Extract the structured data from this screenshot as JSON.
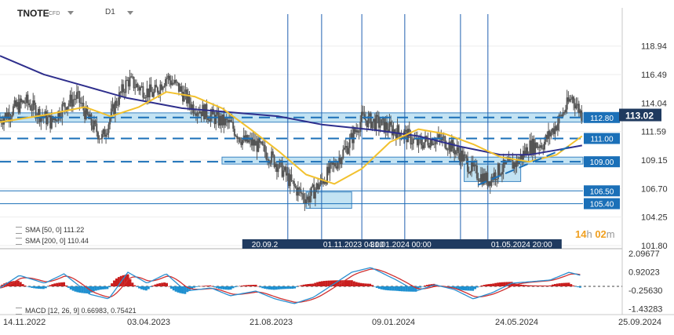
{
  "header": {
    "symbol": "TNOTE",
    "instrument_type": "CFD",
    "timeframe": "D1"
  },
  "timer": {
    "hours": "14",
    "hours_unit": "h",
    "minutes": "02",
    "minutes_unit": "m"
  },
  "indicators": {
    "sma50_label": "SMA [50, 0] 111.22",
    "sma200_label": "SMA [200, 0] 110.44",
    "macd_label": "MACD [12, 26, 9] 0.66983, 0.75421"
  },
  "colors": {
    "candles": "#555555",
    "sma50": "#f2c12e",
    "sma200": "#2e2e8c",
    "levels": "#1b70b8",
    "zone_fill": "#b9dff2",
    "vlines": "#2060b0",
    "last_price_bg": "#1f3a5f",
    "level_label_bg": "#1b70b8",
    "macd_line": "#2a8fd0",
    "signal_line": "#d03030",
    "hist_pos": "#c81e1e",
    "hist_neg": "#1e90d0",
    "timer": "#f0a020"
  },
  "chart_data": [
    {
      "type": "candlestick",
      "timeframe": "D1",
      "y_axis_ticks": [
        118.94,
        116.49,
        114.04,
        111.59,
        109.15,
        106.7,
        104.25,
        101.8
      ],
      "ylim": [
        101.8,
        120.2
      ],
      "x_axis_ticks": [
        "14.11.2022",
        "03.04.2023",
        "21.08.2023",
        "09.01.2024",
        "24.05.2024",
        "25.09.2024"
      ],
      "xlim": [
        "2022-11-14",
        "2024-09-25"
      ],
      "last_price": 113.02,
      "close_path": [
        [
          "2022-11-14",
          112.6
        ],
        [
          "2022-11-28",
          113.5
        ],
        [
          "2022-12-12",
          114.2
        ],
        [
          "2022-12-26",
          113.2
        ],
        [
          "2023-01-09",
          112.4
        ],
        [
          "2023-01-23",
          113.8
        ],
        [
          "2023-02-06",
          114.6
        ],
        [
          "2023-02-20",
          112.5
        ],
        [
          "2023-03-06",
          111.0
        ],
        [
          "2023-03-20",
          113.9
        ],
        [
          "2023-04-03",
          116.0
        ],
        [
          "2023-04-17",
          115.3
        ],
        [
          "2023-05-01",
          114.8
        ],
        [
          "2023-05-15",
          116.3
        ],
        [
          "2023-05-29",
          115.3
        ],
        [
          "2023-06-12",
          113.8
        ],
        [
          "2023-06-26",
          113.3
        ],
        [
          "2023-07-10",
          112.6
        ],
        [
          "2023-07-24",
          112.2
        ],
        [
          "2023-08-07",
          110.8
        ],
        [
          "2023-08-21",
          110.5
        ],
        [
          "2023-09-04",
          109.6
        ],
        [
          "2023-09-18",
          108.4
        ],
        [
          "2023-10-02",
          106.8
        ],
        [
          "2023-10-16",
          105.8
        ],
        [
          "2023-11-01",
          107.3
        ],
        [
          "2023-11-15",
          108.7
        ],
        [
          "2023-12-01",
          110.6
        ],
        [
          "2023-12-15",
          112.7
        ],
        [
          "2024-01-02",
          112.3
        ],
        [
          "2024-01-16",
          111.8
        ],
        [
          "2024-02-01",
          111.3
        ],
        [
          "2024-02-15",
          110.5
        ],
        [
          "2024-03-01",
          111.0
        ],
        [
          "2024-03-15",
          110.8
        ],
        [
          "2024-04-01",
          109.6
        ],
        [
          "2024-04-15",
          108.2
        ],
        [
          "2024-05-01",
          107.4
        ],
        [
          "2024-05-15",
          108.4
        ],
        [
          "2024-06-01",
          108.9
        ],
        [
          "2024-06-15",
          110.3
        ],
        [
          "2024-07-01",
          110.6
        ],
        [
          "2024-07-15",
          112.2
        ],
        [
          "2024-08-01",
          114.6
        ],
        [
          "2024-08-12",
          113.0
        ]
      ],
      "series": [
        {
          "name": "SMA [50, 0]",
          "value": 111.22,
          "values": [
            [
              "2022-11-14",
              112.4
            ],
            [
              "2023-01-01",
              113.0
            ],
            [
              "2023-02-15",
              113.7
            ],
            [
              "2023-03-15",
              112.9
            ],
            [
              "2023-04-15",
              113.7
            ],
            [
              "2023-05-15",
              115.0
            ],
            [
              "2023-06-15",
              114.6
            ],
            [
              "2023-07-15",
              113.6
            ],
            [
              "2023-08-15",
              111.8
            ],
            [
              "2023-09-15",
              109.9
            ],
            [
              "2023-10-15",
              107.9
            ],
            [
              "2023-11-15",
              107.1
            ],
            [
              "2023-12-15",
              108.4
            ],
            [
              "2024-01-15",
              110.7
            ],
            [
              "2024-02-15",
              111.8
            ],
            [
              "2024-03-15",
              111.4
            ],
            [
              "2024-04-15",
              110.5
            ],
            [
              "2024-05-15",
              109.4
            ],
            [
              "2024-06-15",
              109.0
            ],
            [
              "2024-07-15",
              109.6
            ],
            [
              "2024-08-12",
              111.2
            ]
          ]
        },
        {
          "name": "SMA [200, 0]",
          "value": 110.44,
          "values": [
            [
              "2022-11-14",
              118.1
            ],
            [
              "2023-01-01",
              116.5
            ],
            [
              "2023-02-15",
              115.5
            ],
            [
              "2023-04-01",
              114.5
            ],
            [
              "2023-06-01",
              113.6
            ],
            [
              "2023-08-01",
              113.2
            ],
            [
              "2023-09-15",
              112.9
            ],
            [
              "2023-11-01",
              112.2
            ],
            [
              "2024-01-01",
              111.7
            ],
            [
              "2024-02-15",
              111.2
            ],
            [
              "2024-04-01",
              110.3
            ],
            [
              "2024-05-15",
              109.6
            ],
            [
              "2024-06-15",
              109.6
            ],
            [
              "2024-07-15",
              110.0
            ],
            [
              "2024-08-12",
              110.4
            ]
          ]
        }
      ],
      "horizontal_levels": [
        {
          "value": 112.8,
          "label": "112.80",
          "style": "dashed"
        },
        {
          "value": 111.0,
          "label": "111.00",
          "style": "dashed"
        },
        {
          "value": 109.0,
          "label": "109.00",
          "style": "dashed"
        },
        {
          "value": 106.5,
          "label": "106.50",
          "style": "solid"
        },
        {
          "value": 105.4,
          "label": "105.40",
          "style": "solid"
        }
      ],
      "zones": [
        {
          "from": "2022-11-14",
          "to": "2024-08-12",
          "low": 112.4,
          "high": 113.2
        },
        {
          "from": "2023-07-15",
          "to": "2024-08-12",
          "low": 108.8,
          "high": 109.4
        },
        {
          "from": "2023-10-15",
          "to": "2023-11-03",
          "low": 105.0,
          "high": 106.4
        },
        {
          "from": "2024-04-05",
          "to": "2024-05-06",
          "low": 107.3,
          "high": 108.8
        }
      ],
      "trendline": {
        "from": [
          "2024-04-20",
          107.0
        ],
        "to": [
          "2024-08-01",
          110.4
        ],
        "style": "dashed"
      },
      "vertical_markers": [
        "2023-09-25",
        "2023-11-01",
        "2023-12-15",
        "2024-01-31",
        "2024-04-01",
        "2024-05-01"
      ],
      "marker_labels": [
        "20.09.2",
        "01.11.2023 04:00",
        "31.01.2024 00:00",
        "01.05.2024 20:00"
      ]
    },
    {
      "type": "line",
      "name": "MACD [12, 26, 9]",
      "y_axis_ticks": [
        2.09677,
        0.92023,
        -0.2563,
        -1.43283
      ],
      "ylim": [
        -1.8,
        2.2
      ],
      "macd_value": 0.66983,
      "signal_value": 0.75421,
      "macd": [
        [
          "2022-11-14",
          -0.1
        ],
        [
          "2022-12-05",
          0.7
        ],
        [
          "2023-01-02",
          0.2
        ],
        [
          "2023-01-23",
          0.8
        ],
        [
          "2023-02-20",
          -0.5
        ],
        [
          "2023-03-13",
          -0.8
        ],
        [
          "2023-04-03",
          0.9
        ],
        [
          "2023-04-24",
          0.2
        ],
        [
          "2023-05-15",
          0.8
        ],
        [
          "2023-06-05",
          -0.3
        ],
        [
          "2023-07-03",
          -0.1
        ],
        [
          "2023-07-24",
          -0.6
        ],
        [
          "2023-08-21",
          -0.3
        ],
        [
          "2023-09-11",
          -0.8
        ],
        [
          "2023-10-02",
          -1.1
        ],
        [
          "2023-10-23",
          -0.7
        ],
        [
          "2023-11-13",
          0.1
        ],
        [
          "2023-12-04",
          0.9
        ],
        [
          "2023-12-25",
          1.2
        ],
        [
          "2024-01-22",
          0.4
        ],
        [
          "2024-02-12",
          -0.3
        ],
        [
          "2024-03-04",
          0.1
        ],
        [
          "2024-03-25",
          -0.2
        ],
        [
          "2024-04-15",
          -0.8
        ],
        [
          "2024-05-06",
          -0.4
        ],
        [
          "2024-05-27",
          0.2
        ],
        [
          "2024-06-17",
          0.3
        ],
        [
          "2024-07-08",
          0.4
        ],
        [
          "2024-07-29",
          0.9
        ],
        [
          "2024-08-12",
          0.67
        ]
      ]
    }
  ]
}
